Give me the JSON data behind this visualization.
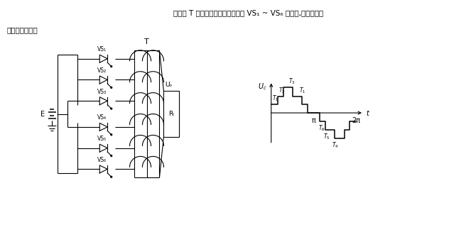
{
  "title_top": "变压器 T 的六个抽头与单向晶闸管 VS₁ ~ VS₆ 相连接,组成晶闸管",
  "title_left": "逆变器主电路。",
  "bg_color": "#ffffff",
  "circuit_color": "#000000",
  "vs_labels": [
    "VS₁",
    "VS₂",
    "VS₃",
    "VS₄",
    "VS₅",
    "VS₆"
  ],
  "T_label": "T",
  "Uo_label": "Uₒ",
  "RL_label": "Rₗ",
  "E_label": "E",
  "t_label": "t",
  "pi_label": "π",
  "twopi_label": "2π"
}
